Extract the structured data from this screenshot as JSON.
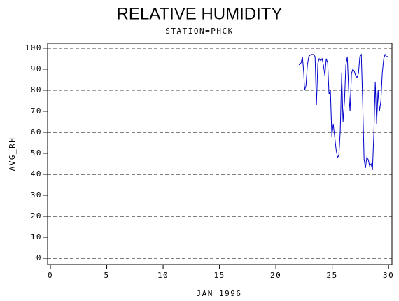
{
  "chart_data": {
    "type": "line",
    "title": "RELATIVE HUMIDITY",
    "subtitle": "STATION=PHCK",
    "x_label": "JAN 1996",
    "y_label": "AVG_RH",
    "xlim": [
      -0.25,
      30.3
    ],
    "ylim": [
      -3,
      102.3
    ],
    "xticks": [
      0,
      5,
      10,
      15,
      20,
      25,
      30
    ],
    "yticks": [
      0,
      10,
      20,
      30,
      40,
      50,
      60,
      70,
      80,
      90,
      100
    ],
    "gridlines": [
      0,
      20,
      40,
      60,
      80,
      100
    ],
    "series": [
      {
        "color": "#0000cc",
        "x": [
          22.05,
          22.24,
          22.36,
          22.48,
          22.55,
          22.67,
          22.8,
          22.92,
          23.11,
          23.35,
          23.48,
          23.6,
          23.73,
          23.85,
          23.98,
          24.1,
          24.22,
          24.35,
          24.47,
          24.6,
          24.72,
          24.84,
          24.97,
          25.09,
          25.22,
          25.34,
          25.47,
          25.59,
          25.71,
          25.84,
          25.96,
          26.09,
          26.21,
          26.34,
          26.46,
          26.58,
          26.71,
          26.83,
          26.96,
          27.08,
          27.2,
          27.33,
          27.45,
          27.58,
          27.7,
          27.83,
          27.95,
          28.07,
          28.2,
          28.32,
          28.45,
          28.57,
          28.7,
          28.82,
          28.94,
          29.07,
          29.19,
          29.32,
          29.44,
          29.57,
          29.69,
          29.81,
          29.94
        ],
        "values": [
          92,
          93,
          96,
          88,
          80,
          82,
          92,
          96,
          97,
          97,
          96,
          73,
          93,
          95,
          94,
          95,
          92,
          87,
          95,
          93,
          78,
          80,
          58,
          64,
          58,
          52,
          48,
          49,
          60,
          88,
          65,
          75,
          92,
          96,
          80,
          70,
          88,
          90,
          89,
          87,
          86,
          88,
          96,
          97,
          75,
          47,
          43,
          48,
          47,
          44,
          45,
          42,
          60,
          84,
          64,
          80,
          70,
          75,
          88,
          95,
          97,
          96,
          96
        ]
      }
    ]
  }
}
